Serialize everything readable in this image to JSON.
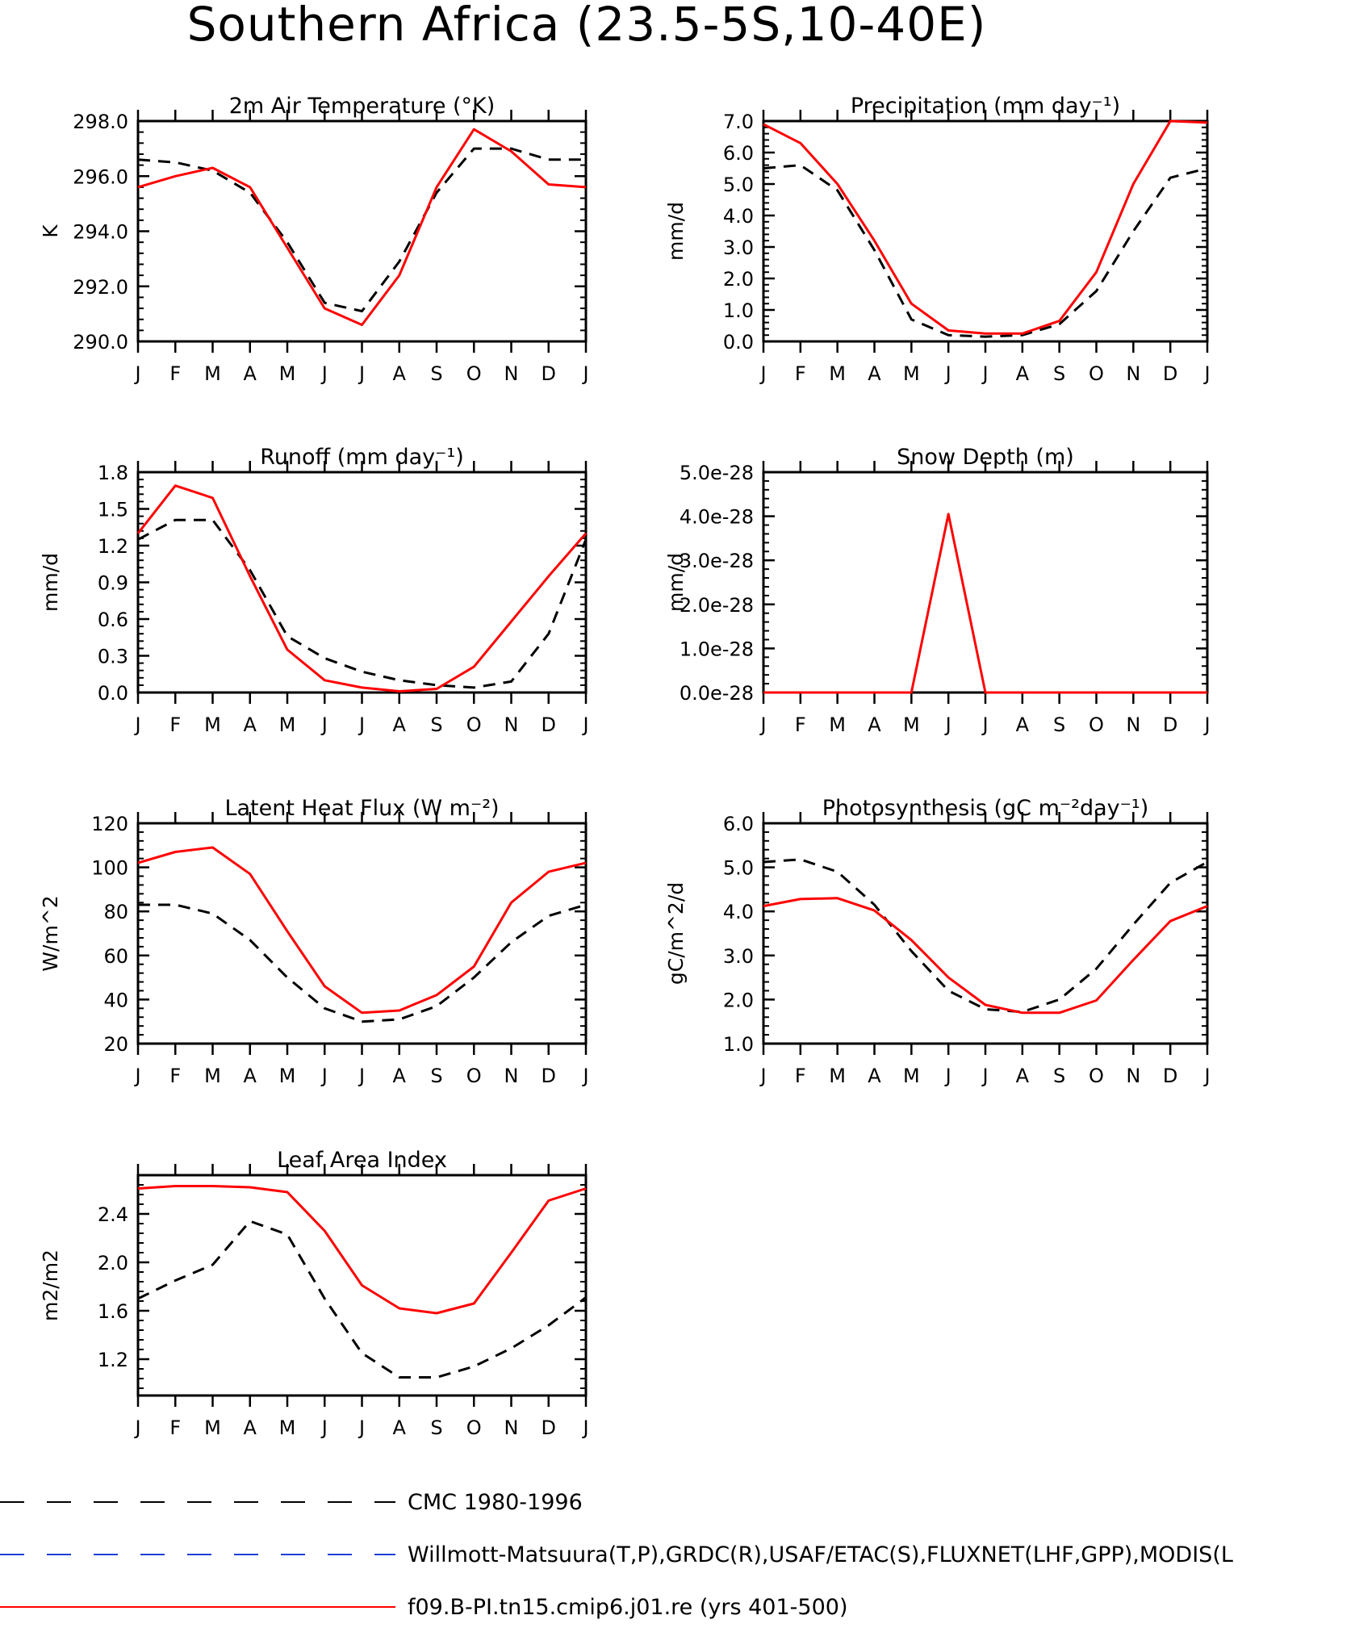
{
  "title": "Southern Africa (23.5-5S,10-40E)",
  "months": [
    "J",
    "F",
    "M",
    "A",
    "M",
    "J",
    "J",
    "A",
    "S",
    "O",
    "N",
    "D",
    "J"
  ],
  "legend": [
    {
      "label": "CMC 1980-1996",
      "color": "#000000",
      "dash": "long"
    },
    {
      "label": "Willmott-Matsuura(T,P),GRDC(R),USAF/ETAC(S),FLUXNET(LHF,GPP),MODIS(L",
      "color": "#1f3fd8",
      "dash": "long"
    },
    {
      "label": "f09.B-PI.tn15.cmip6.j01.re (yrs 401-500)",
      "color": "#ff0000",
      "dash": "solid"
    }
  ],
  "chart_data": [
    {
      "type": "line",
      "title": "2m Air Temperature (°K)",
      "ylabel": "K",
      "ylim": [
        290,
        298
      ],
      "yticks": [
        "290.0",
        "292.0",
        "294.0",
        "296.0",
        "298.0"
      ],
      "ytick_values": [
        290,
        292,
        294,
        296,
        298
      ],
      "x": [
        "J",
        "F",
        "M",
        "A",
        "M",
        "J",
        "J",
        "A",
        "S",
        "O",
        "N",
        "D",
        "J"
      ],
      "series": [
        {
          "color": "#000000",
          "style": "dashed",
          "values": [
            296.6,
            296.5,
            296.2,
            295.4,
            293.6,
            291.4,
            291.1,
            292.9,
            295.4,
            297.0,
            297.0,
            296.6,
            296.6
          ]
        },
        {
          "color": "#ff0000",
          "style": "solid",
          "values": [
            295.6,
            296.0,
            296.3,
            295.6,
            293.4,
            291.2,
            290.6,
            292.4,
            295.6,
            297.7,
            296.9,
            295.7,
            295.6
          ]
        }
      ]
    },
    {
      "type": "line",
      "title": "Precipitation (mm day⁻¹)",
      "ylabel": "mm/d",
      "ylim": [
        0,
        7
      ],
      "yticks": [
        "0.0",
        "1.0",
        "2.0",
        "3.0",
        "4.0",
        "5.0",
        "6.0",
        "7.0"
      ],
      "ytick_values": [
        0,
        1,
        2,
        3,
        4,
        5,
        6,
        7
      ],
      "x": [
        "J",
        "F",
        "M",
        "A",
        "M",
        "J",
        "J",
        "A",
        "S",
        "O",
        "N",
        "D",
        "J"
      ],
      "series": [
        {
          "color": "#000000",
          "style": "dashed",
          "values": [
            5.5,
            5.6,
            4.8,
            2.9,
            0.7,
            0.2,
            0.15,
            0.2,
            0.55,
            1.6,
            3.5,
            5.2,
            5.5
          ]
        },
        {
          "color": "#ff0000",
          "style": "solid",
          "values": [
            6.9,
            6.3,
            5.0,
            3.2,
            1.2,
            0.35,
            0.25,
            0.25,
            0.65,
            2.2,
            5.0,
            7.0,
            6.95
          ]
        }
      ]
    },
    {
      "type": "line",
      "title": "Runoff (mm day⁻¹)",
      "ylabel": "mm/d",
      "ylim": [
        0,
        1.8
      ],
      "yticks": [
        "0.0",
        "0.3",
        "0.6",
        "0.9",
        "1.2",
        "1.5",
        "1.8"
      ],
      "ytick_values": [
        0,
        0.3,
        0.6,
        0.9,
        1.2,
        1.5,
        1.8
      ],
      "x": [
        "J",
        "F",
        "M",
        "A",
        "M",
        "J",
        "J",
        "A",
        "S",
        "O",
        "N",
        "D",
        "J"
      ],
      "series": [
        {
          "color": "#000000",
          "style": "dashed",
          "values": [
            1.25,
            1.41,
            1.41,
            1.0,
            0.46,
            0.28,
            0.17,
            0.1,
            0.06,
            0.04,
            0.09,
            0.48,
            1.25
          ]
        },
        {
          "color": "#ff0000",
          "style": "solid",
          "values": [
            1.3,
            1.69,
            1.59,
            0.95,
            0.35,
            0.1,
            0.04,
            0.01,
            0.03,
            0.21,
            0.58,
            0.95,
            1.3
          ]
        }
      ]
    },
    {
      "type": "line",
      "title": "Snow Depth (m)",
      "ylabel": "mm/d",
      "ylim": [
        0,
        5e-28
      ],
      "yticks": [
        "0.0e-28",
        "1.0e-28",
        "2.0e-28",
        "3.0e-28",
        "4.0e-28",
        "5.0e-28"
      ],
      "ytick_values": [
        0,
        1e-28,
        2e-28,
        3e-28,
        4e-28,
        5e-28
      ],
      "x": [
        "J",
        "F",
        "M",
        "A",
        "M",
        "J",
        "J",
        "A",
        "S",
        "O",
        "N",
        "D",
        "J"
      ],
      "series": [
        {
          "color": "#000000",
          "style": "dashed",
          "values": [
            0,
            0,
            0,
            0,
            0,
            0,
            0,
            0,
            0,
            0,
            0,
            0,
            0
          ]
        },
        {
          "color": "#ff0000",
          "style": "solid",
          "values": [
            0,
            0,
            0,
            0,
            0,
            4.05e-28,
            0,
            0,
            0,
            0,
            0,
            0,
            0
          ]
        }
      ]
    },
    {
      "type": "line",
      "title": "Latent Heat Flux (W m⁻²)",
      "ylabel": "W/m^2",
      "ylim": [
        20,
        120
      ],
      "yticks": [
        "20",
        "40",
        "60",
        "80",
        "100",
        "120"
      ],
      "ytick_values": [
        20,
        40,
        60,
        80,
        100,
        120
      ],
      "x": [
        "J",
        "F",
        "M",
        "A",
        "M",
        "J",
        "J",
        "A",
        "S",
        "O",
        "N",
        "D",
        "J"
      ],
      "series": [
        {
          "color": "#000000",
          "style": "dashed",
          "values": [
            83,
            83,
            79,
            67,
            50,
            36,
            30,
            31,
            37,
            50,
            66,
            78,
            83
          ]
        },
        {
          "color": "#ff0000",
          "style": "solid",
          "values": [
            102,
            107,
            109,
            97,
            71,
            46,
            34,
            35,
            42,
            55,
            84,
            98,
            102
          ]
        }
      ]
    },
    {
      "type": "line",
      "title": "Photosynthesis (gC m⁻²day⁻¹)",
      "ylabel": "gC/m^2/d",
      "ylim": [
        1.0,
        6.0
      ],
      "yticks": [
        "1.0",
        "2.0",
        "3.0",
        "4.0",
        "5.0",
        "6.0"
      ],
      "ytick_values": [
        1,
        2,
        3,
        4,
        5,
        6
      ],
      "x": [
        "J",
        "F",
        "M",
        "A",
        "M",
        "J",
        "J",
        "A",
        "S",
        "O",
        "N",
        "D",
        "J"
      ],
      "series": [
        {
          "color": "#000000",
          "style": "dashed",
          "values": [
            5.12,
            5.18,
            4.9,
            4.15,
            3.1,
            2.2,
            1.78,
            1.72,
            2.0,
            2.7,
            3.7,
            4.65,
            5.12
          ]
        },
        {
          "color": "#ff0000",
          "style": "solid",
          "values": [
            4.12,
            4.28,
            4.3,
            4.02,
            3.35,
            2.5,
            1.88,
            1.7,
            1.7,
            1.98,
            2.9,
            3.78,
            4.12
          ]
        }
      ]
    },
    {
      "type": "line",
      "title": "Leaf Area Index",
      "ylabel": "m2/m2",
      "ylim": [
        0.9,
        2.72
      ],
      "yticks": [
        "1.2",
        "1.6",
        "2.0",
        "2.4"
      ],
      "ytick_values": [
        1.2,
        1.6,
        2.0,
        2.4
      ],
      "x": [
        "J",
        "F",
        "M",
        "A",
        "M",
        "J",
        "J",
        "A",
        "S",
        "O",
        "N",
        "D",
        "J"
      ],
      "series": [
        {
          "color": "#000000",
          "style": "dashed",
          "values": [
            1.7,
            1.85,
            1.98,
            2.34,
            2.23,
            1.7,
            1.25,
            1.05,
            1.05,
            1.14,
            1.29,
            1.48,
            1.71
          ]
        },
        {
          "color": "#ff0000",
          "style": "solid",
          "values": [
            2.61,
            2.63,
            2.63,
            2.62,
            2.58,
            2.26,
            1.81,
            1.62,
            1.58,
            1.66,
            2.08,
            2.51,
            2.61
          ]
        }
      ]
    }
  ]
}
